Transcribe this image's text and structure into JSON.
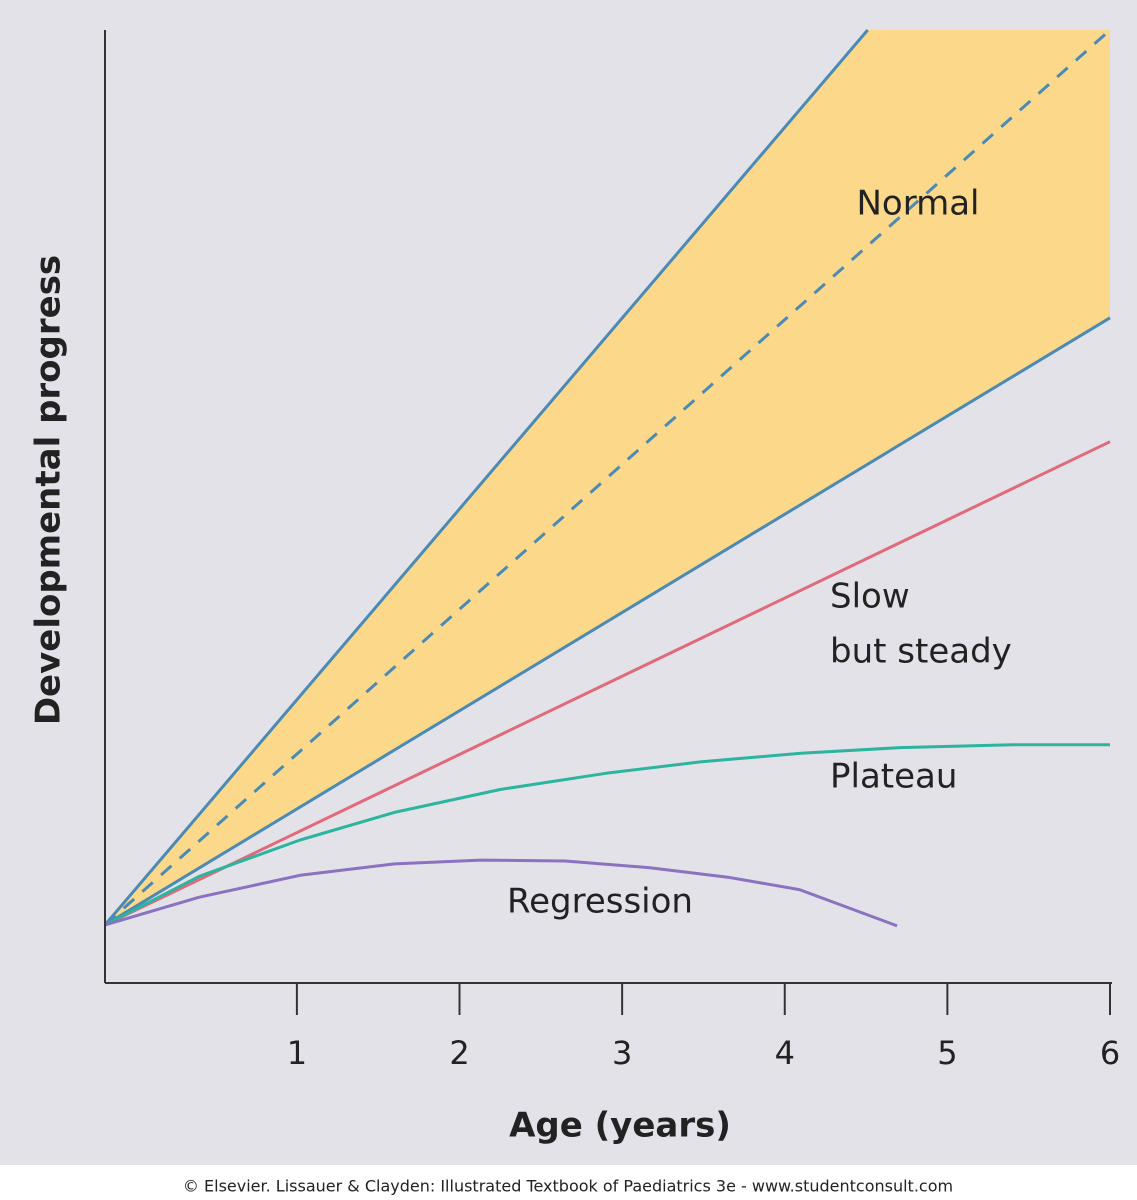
{
  "chart_data": {
    "type": "line",
    "x_label": "Age (years)",
    "y_label": "Developmental progress",
    "credit": "© Elsevier. Lissauer & Clayden: Illustrated Textbook of Paediatrics 3e - www.studentconsult.com",
    "xlim": [
      -0.18,
      6
    ],
    "ylim": [
      0,
      100
    ],
    "xticks": [
      1,
      2,
      3,
      4,
      5,
      6
    ],
    "normal_band": {
      "label": "Normal",
      "fill": "#fcd98a",
      "line_color": "#4a8ab5",
      "upper": {
        "x": [
          -0.18,
          4.51
        ],
        "values": [
          6.1,
          100
        ]
      },
      "lower": {
        "x": [
          -0.18,
          6
        ],
        "values": [
          6.1,
          69.8
        ]
      },
      "median": {
        "x": [
          -0.18,
          6
        ],
        "values": [
          6.1,
          100
        ]
      }
    },
    "series": [
      {
        "name": [
          "Slow",
          "but steady"
        ],
        "color": "#e06a7a",
        "x": [
          -0.18,
          6
        ],
        "values": [
          6.1,
          56.8
        ]
      },
      {
        "name": "Plateau",
        "color": "#2bb5a0",
        "x": [
          -0.18,
          0.4,
          1.02,
          1.6,
          2.25,
          2.9,
          3.48,
          4.1,
          4.71,
          5.4,
          6
        ],
        "values": [
          6.1,
          11.2,
          15.0,
          17.9,
          20.3,
          22.0,
          23.2,
          24.1,
          24.7,
          25.0,
          25.0
        ]
      },
      {
        "name": "Regression",
        "color": "#8a72c0",
        "x": [
          -0.18,
          0.4,
          1.02,
          1.6,
          2.13,
          2.65,
          3.17,
          3.65,
          4.09,
          4.69
        ],
        "values": [
          6.1,
          9.0,
          11.3,
          12.5,
          12.9,
          12.8,
          12.1,
          11.1,
          9.8,
          6.0
        ]
      }
    ]
  }
}
